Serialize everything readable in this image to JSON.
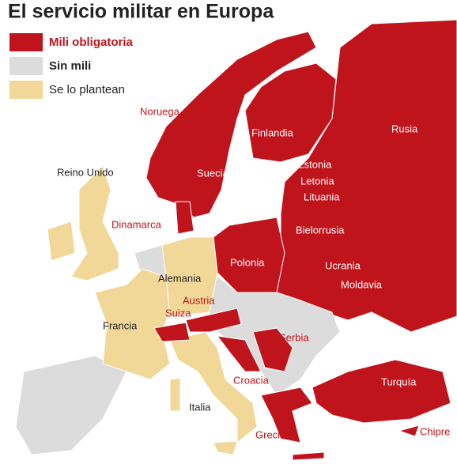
{
  "title": "El servicio militar en Europa",
  "legend": [
    {
      "label": "Mili obligatoria",
      "color": "#c0141c"
    },
    {
      "label": "Sin mili",
      "color": "#dcdcdc"
    },
    {
      "label": "Se lo plantean",
      "color": "#f2d898"
    }
  ],
  "countries": [
    "Noruega",
    "Finlandia",
    "Rusia",
    "Suecia",
    "Estonia",
    "Letonia",
    "Lituania",
    "Reino Unido",
    "Dinamarca",
    "Bielorrusia",
    "Polonia",
    "Alemania",
    "Ucrania",
    "Moldavia",
    "Austria",
    "Francia",
    "Suiza",
    "Serbia",
    "Croacia",
    "Turquía",
    "Italia",
    "Grecia",
    "Chipre"
  ]
}
